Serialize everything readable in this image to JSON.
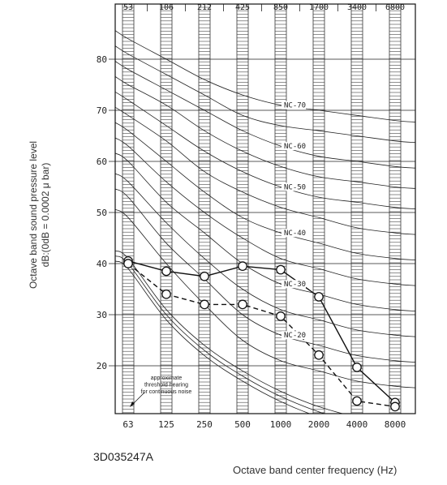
{
  "document_id": "3D035247A",
  "chart_data": {
    "type": "line",
    "xlabel": "Octave band center frequency (Hz)",
    "ylabel_lines": [
      "Octave band sound pressure level",
      "dB:(0dB = 0.0002 μ bar)"
    ],
    "x": [
      "63",
      "125",
      "250",
      "500",
      "1000",
      "2000",
      "4000",
      "8000"
    ],
    "top_band_labels": [
      "53",
      "106",
      "212",
      "425",
      "850",
      "1700",
      "3400",
      "6800"
    ],
    "ylim": [
      10,
      90
    ],
    "y_ticks": [
      20,
      30,
      40,
      50,
      60,
      70,
      80
    ],
    "grid": true,
    "series": [
      {
        "style": "solid",
        "values": [
          40.5,
          38.5,
          37.5,
          39.5,
          38.8,
          33.5,
          19.7,
          12.8
        ]
      },
      {
        "style": "dashed",
        "values": [
          40.0,
          34.0,
          32.0,
          32.0,
          29.7,
          22.1,
          13.1,
          12.0
        ]
      }
    ],
    "nc_curves": [
      {
        "label": "NC-70",
        "values": [
          84,
          80,
          76,
          73,
          71,
          70,
          69,
          68
        ]
      },
      {
        "label": "NC-65",
        "values": [
          81,
          77,
          73,
          69,
          67,
          66,
          65,
          64
        ]
      },
      {
        "label": "NC-60",
        "values": [
          78,
          74,
          70,
          66,
          63,
          61,
          60,
          59
        ]
      },
      {
        "label": "NC-55",
        "values": [
          75,
          71,
          66,
          62,
          59,
          57,
          56,
          55
        ]
      },
      {
        "label": "NC-50",
        "values": [
          72,
          67,
          62,
          58,
          55,
          53,
          52,
          51
        ]
      },
      {
        "label": "NC-45",
        "values": [
          69,
          64,
          58,
          54,
          51,
          49,
          47,
          46
        ]
      },
      {
        "label": "NC-40",
        "values": [
          66,
          60,
          54,
          49,
          46,
          44,
          42,
          41
        ]
      },
      {
        "label": "NC-35",
        "values": [
          63,
          56,
          50,
          45,
          41,
          39,
          37,
          36
        ]
      },
      {
        "label": "NC-30",
        "values": [
          60,
          52,
          46,
          40,
          36,
          34,
          32,
          31
        ]
      },
      {
        "label": "NC-25",
        "values": [
          56,
          48,
          41,
          35,
          31,
          29,
          27,
          26
        ]
      },
      {
        "label": "NC-20",
        "values": [
          53,
          44,
          37,
          30,
          26,
          24,
          22,
          21
        ]
      },
      {
        "label": "NC-15",
        "values": [
          49,
          40,
          32,
          25,
          21,
          19,
          17,
          16
        ]
      }
    ],
    "nc_printed_labels": [
      "NC-70",
      "NC-60",
      "NC-50",
      "NC-40",
      "NC-30",
      "NC-20"
    ],
    "threshold_curves": [
      {
        "values": [
          41,
          31,
          24,
          19,
          15,
          12,
          10,
          9
        ]
      },
      {
        "values": [
          40,
          30,
          23,
          18,
          14,
          11,
          9,
          8
        ]
      },
      {
        "values": [
          39,
          29,
          22,
          17,
          13,
          10,
          8,
          7
        ]
      }
    ],
    "annotation_lines": [
      "approximate",
      "threshold hearing",
      "for continuous noise"
    ]
  }
}
